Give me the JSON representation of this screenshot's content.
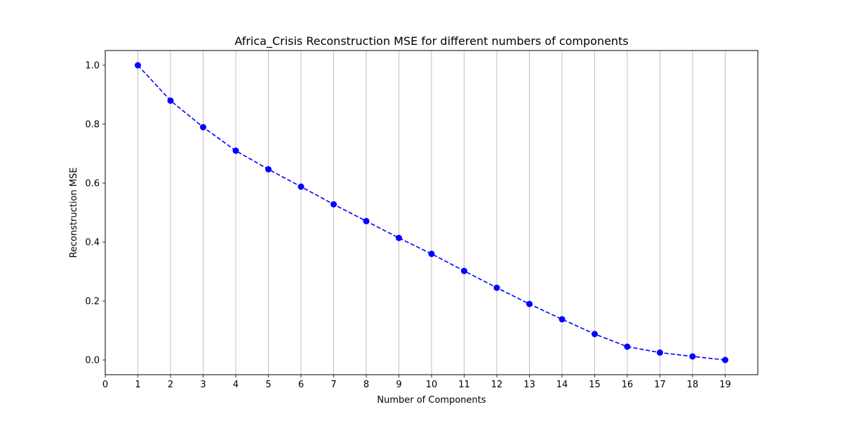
{
  "chart_data": {
    "type": "line",
    "title": "Africa_Crisis Reconstruction MSE for different numbers of components",
    "xlabel": "Number of Components",
    "ylabel": "Reconstruction MSE",
    "x": [
      1,
      2,
      3,
      4,
      5,
      6,
      7,
      8,
      9,
      10,
      11,
      12,
      13,
      14,
      15,
      16,
      17,
      18,
      19
    ],
    "series": [
      {
        "values": [
          1.0,
          0.88,
          0.79,
          0.71,
          0.647,
          0.588,
          0.528,
          0.471,
          0.414,
          0.36,
          0.302,
          0.245,
          0.19,
          0.138,
          0.088,
          0.045,
          0.025,
          0.012,
          0.0
        ],
        "color": "#0000ff",
        "line_style": "dashed",
        "marker": "circle"
      }
    ],
    "xlim": [
      0,
      20
    ],
    "ylim": [
      -0.05,
      1.05
    ],
    "xticks": [
      0,
      1,
      2,
      3,
      4,
      5,
      6,
      7,
      8,
      9,
      10,
      11,
      12,
      13,
      14,
      15,
      16,
      17,
      18,
      19
    ],
    "yticks": [
      0.0,
      0.2,
      0.4,
      0.6,
      0.8,
      1.0
    ],
    "ytick_labels": [
      "0.0",
      "0.2",
      "0.4",
      "0.6",
      "0.8",
      "1.0"
    ],
    "grid": "x-major",
    "legend": "none"
  }
}
